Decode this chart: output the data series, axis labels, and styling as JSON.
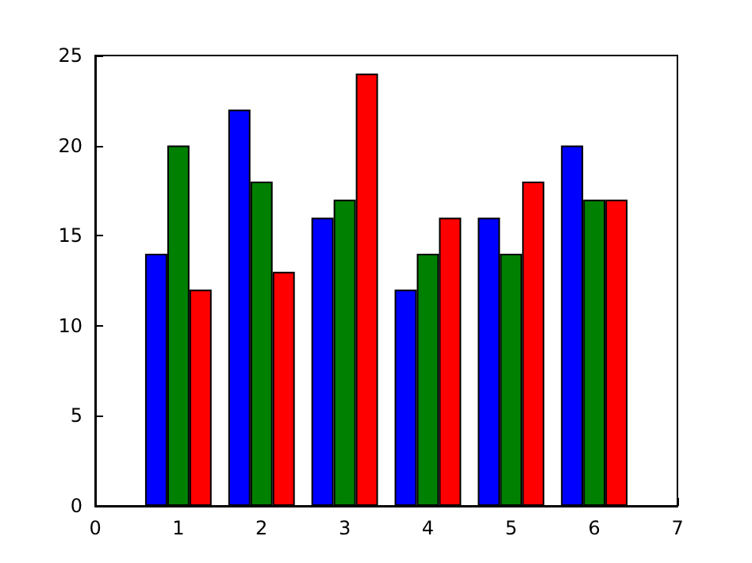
{
  "chart_data": {
    "type": "bar",
    "x": [
      1,
      2,
      3,
      4,
      5,
      6
    ],
    "series": [
      {
        "color": "#0000ff",
        "values": [
          14,
          22,
          16,
          12,
          16,
          20
        ]
      },
      {
        "color": "#008000",
        "values": [
          20,
          18,
          17,
          14,
          14,
          17
        ]
      },
      {
        "color": "#ff0000",
        "values": [
          12,
          13,
          24,
          16,
          18,
          17
        ]
      }
    ],
    "xlim": [
      0,
      7
    ],
    "xticks": [
      0,
      1,
      2,
      3,
      4,
      5,
      6,
      7
    ],
    "ylim": [
      0,
      25
    ],
    "yticks": [
      0,
      5,
      10,
      15,
      20,
      25
    ],
    "grid": false
  }
}
